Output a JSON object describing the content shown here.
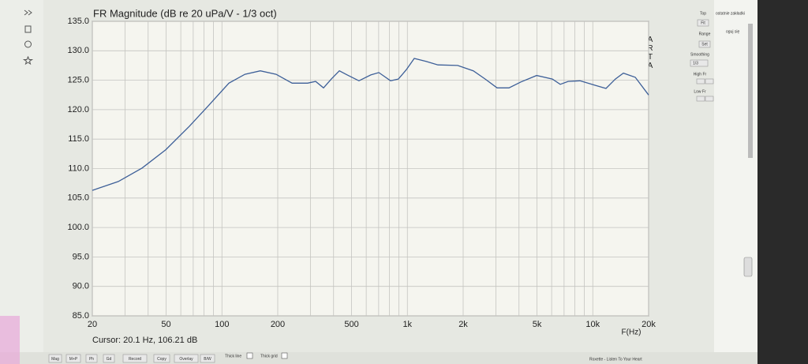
{
  "chart_data": {
    "type": "line",
    "title": "FR Magnitude (dB re 20 uPa/V - 1/3 oct)",
    "x_label": "F(Hz)",
    "watermark": "ARTA",
    "cursor_label": "Cursor: 20.1 Hz, 106.21 dB",
    "log_x": true,
    "grid": true,
    "xlim": [
      20,
      20000
    ],
    "ylim": [
      85,
      135
    ],
    "xticks": [
      20,
      50,
      100,
      200,
      500,
      {
        "value": 1000,
        "label": "1k"
      },
      {
        "value": 2000,
        "label": "2k"
      },
      {
        "value": 5000,
        "label": "5k"
      },
      {
        "value": 10000,
        "label": "10k"
      },
      {
        "value": 20000,
        "label": "20k"
      }
    ],
    "x_minor_ticks": [
      30,
      40,
      60,
      70,
      80,
      90,
      300,
      400,
      600,
      700,
      800,
      900,
      3000,
      4000,
      6000,
      7000,
      8000,
      9000
    ],
    "yticks": [
      {
        "value": 85,
        "label": "85.0"
      },
      {
        "value": 90,
        "label": "90.0"
      },
      {
        "value": 95,
        "label": "95.0"
      },
      {
        "value": 100,
        "label": "100.0"
      },
      {
        "value": 105,
        "label": "105.0"
      },
      {
        "value": 110,
        "label": "110.0"
      },
      {
        "value": 115,
        "label": "115.0"
      },
      {
        "value": 120,
        "label": "120.0"
      },
      {
        "value": 125,
        "label": "125.0"
      },
      {
        "value": 130,
        "label": "130.0"
      },
      {
        "value": 135,
        "label": "135.0"
      }
    ],
    "x": [
      20,
      27.6,
      37.1,
      49.8,
      66.8,
      85.3,
      109,
      133,
      161,
      196,
      239,
      290,
      320,
      353,
      389,
      430,
      474,
      548,
      635,
      702,
      812,
      895,
      988,
      1089,
      1262,
      1462,
      1867,
      2270,
      2630,
      3048,
      3532,
      4092,
      4978,
      6054,
      6672,
      7360,
      8531,
      10376,
      11780,
      13240,
      14620,
      16940,
      20000
    ],
    "series": [
      {
        "color": "#3d5f98",
        "values": [
          106.3,
          107.8,
          110.1,
          113.2,
          117.2,
          120.8,
          124.5,
          126,
          126.6,
          126,
          124.5,
          124.5,
          124.8,
          123.7,
          125.2,
          126.6,
          125.9,
          124.9,
          125.9,
          126.3,
          124.9,
          125.2,
          126.8,
          128.7,
          128.2,
          127.6,
          127.5,
          126.6,
          125.2,
          123.7,
          123.7,
          124.7,
          125.8,
          125.2,
          124.3,
          124.8,
          124.9,
          124.1,
          123.6,
          125.2,
          126.2,
          125.5,
          122.5
        ]
      }
    ]
  },
  "ui": {
    "panel": [
      "Top",
      "Fit",
      "Range",
      "Set",
      "Smoothing",
      "1/3",
      "High Fr",
      "Low Fr"
    ],
    "toolbar": [
      "Mag",
      "M+P",
      "Ph",
      "Gd",
      "Record",
      "Copy",
      "Overlay",
      "B/W"
    ],
    "checkboxes": [
      "Thick line",
      "Thick grid"
    ],
    "browser": [
      "ostatnie zakładki",
      "oguj się",
      "Roxette - Listen To Your Heart"
    ]
  }
}
